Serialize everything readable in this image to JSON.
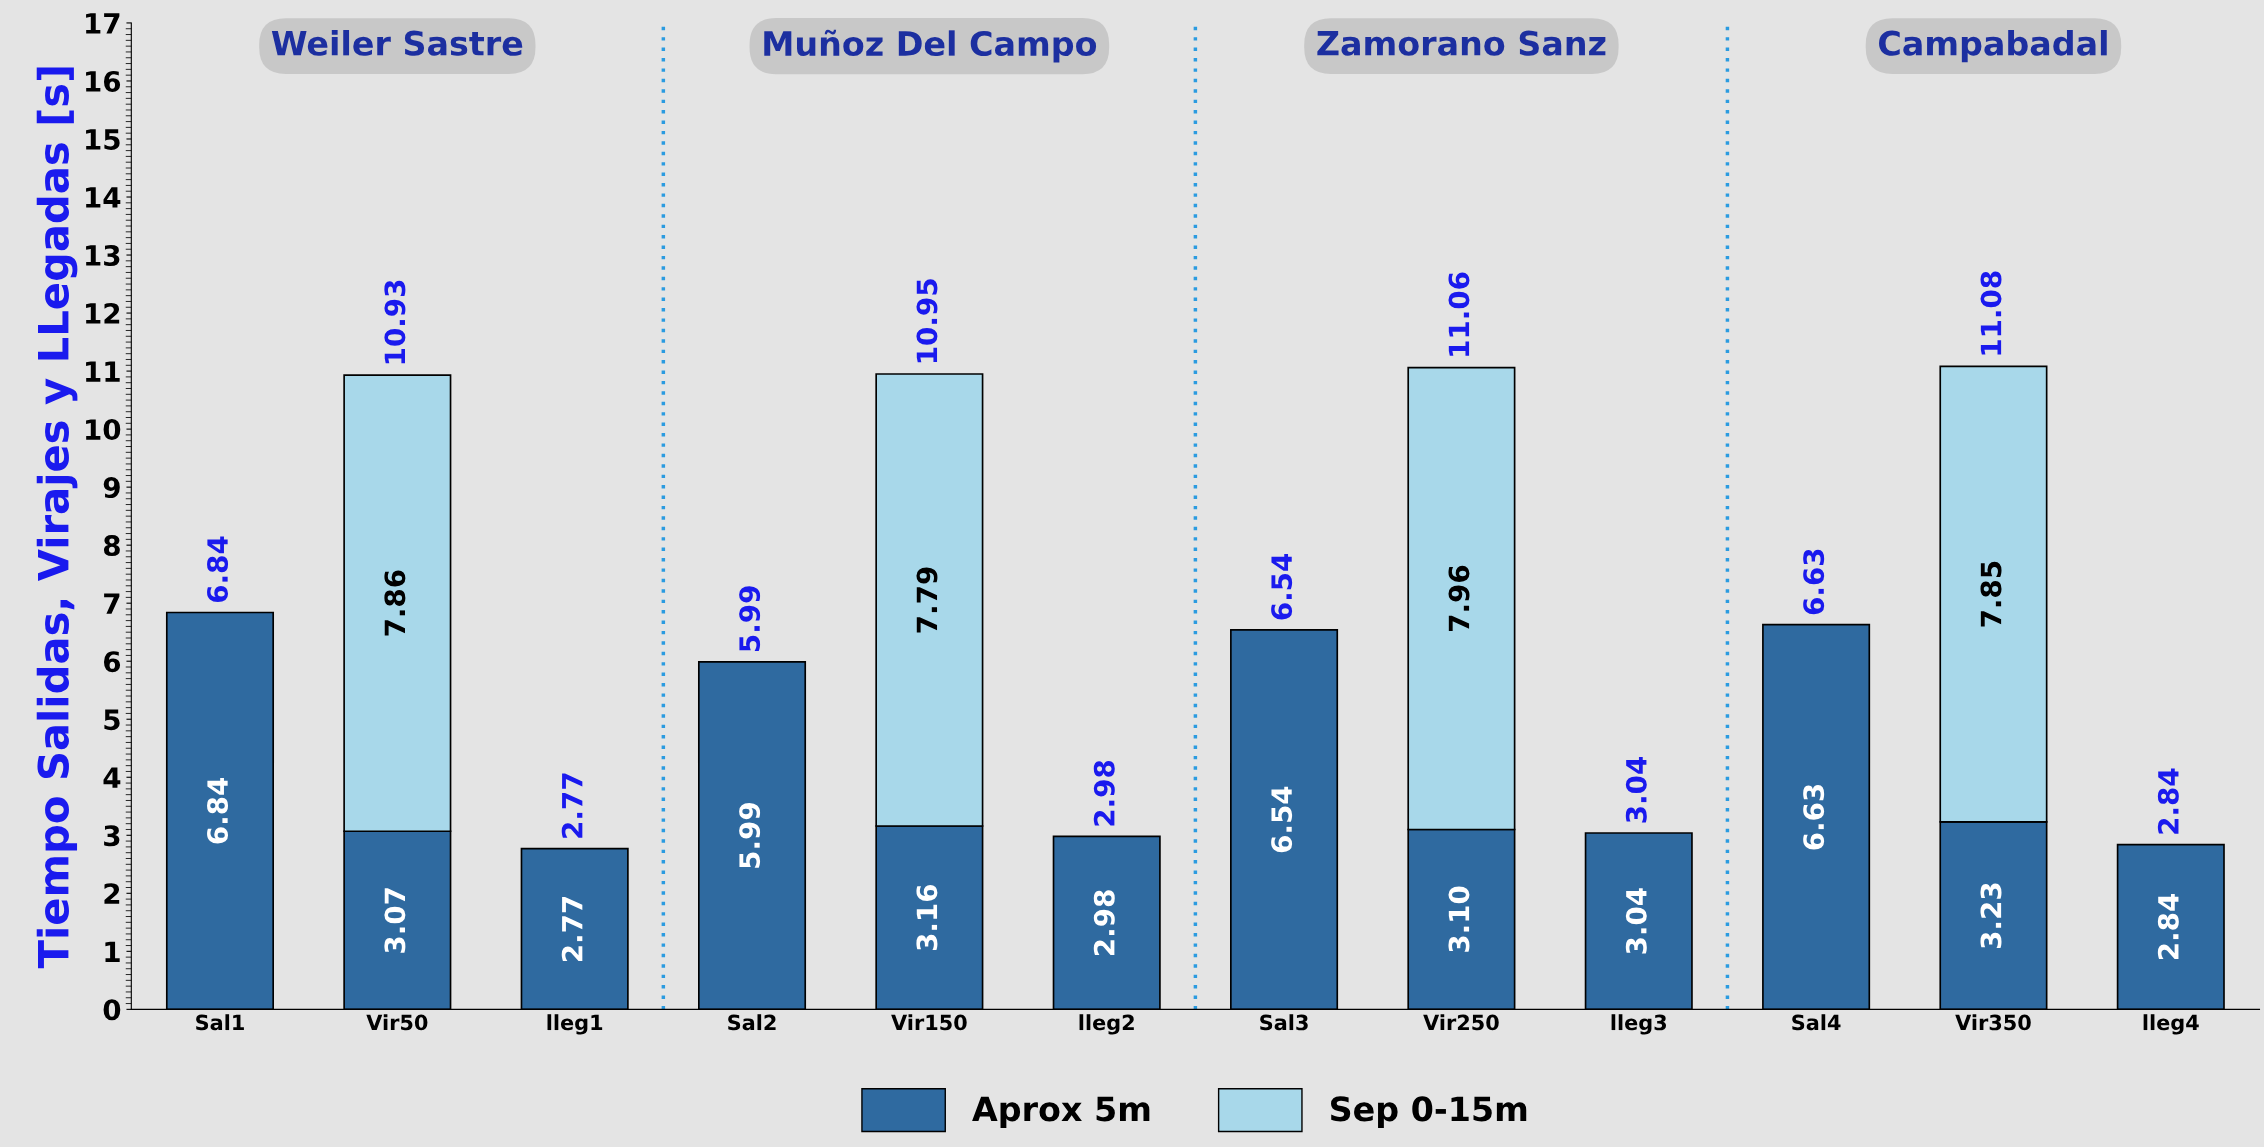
{
  "chart_data": {
    "type": "bar",
    "stacked": true,
    "ylabel": "Tiempo Salidas, Virajes y LLegadas [s]",
    "categories": [
      "Sal1",
      "Vir50",
      "lleg1",
      "Sal2",
      "Vir150",
      "lleg2",
      "Sal3",
      "Vir250",
      "lleg3",
      "Sal4",
      "Vir350",
      "lleg4"
    ],
    "series": [
      {
        "name": "Aprox 5m",
        "color": "#2f6aa0",
        "values": [
          6.84,
          3.07,
          2.77,
          5.99,
          3.16,
          2.98,
          6.54,
          3.1,
          3.04,
          6.63,
          3.23,
          2.84
        ],
        "value_labels": [
          "6.84",
          "3.07",
          "2.77",
          "5.99",
          "3.16",
          "2.98",
          "6.54",
          "3.10",
          "3.04",
          "6.63",
          "3.23",
          "2.84"
        ]
      },
      {
        "name": "Sep 0-15m",
        "color": "#a8d8ea",
        "values": [
          null,
          7.86,
          null,
          null,
          7.79,
          null,
          null,
          7.96,
          null,
          null,
          7.85,
          null
        ],
        "value_labels": [
          null,
          "7.86",
          null,
          null,
          "7.79",
          null,
          null,
          "7.96",
          null,
          null,
          "7.85",
          null
        ]
      }
    ],
    "totals": [
      "6.84",
      "10.93",
      "2.77",
      "5.99",
      "10.95",
      "2.98",
      "6.54",
      "11.06",
      "3.04",
      "6.63",
      "11.08",
      "2.84"
    ],
    "annotations": [
      "Weiler Sastre",
      "Muñoz Del Campo",
      "Zamorano Sanz",
      "Campabadal"
    ],
    "ylim": [
      0,
      17
    ],
    "yticks": [
      0,
      1,
      2,
      3,
      4,
      5,
      6,
      7,
      8,
      9,
      10,
      11,
      12,
      13,
      14,
      15,
      16,
      17
    ],
    "grid": false,
    "legend": "bottom"
  }
}
